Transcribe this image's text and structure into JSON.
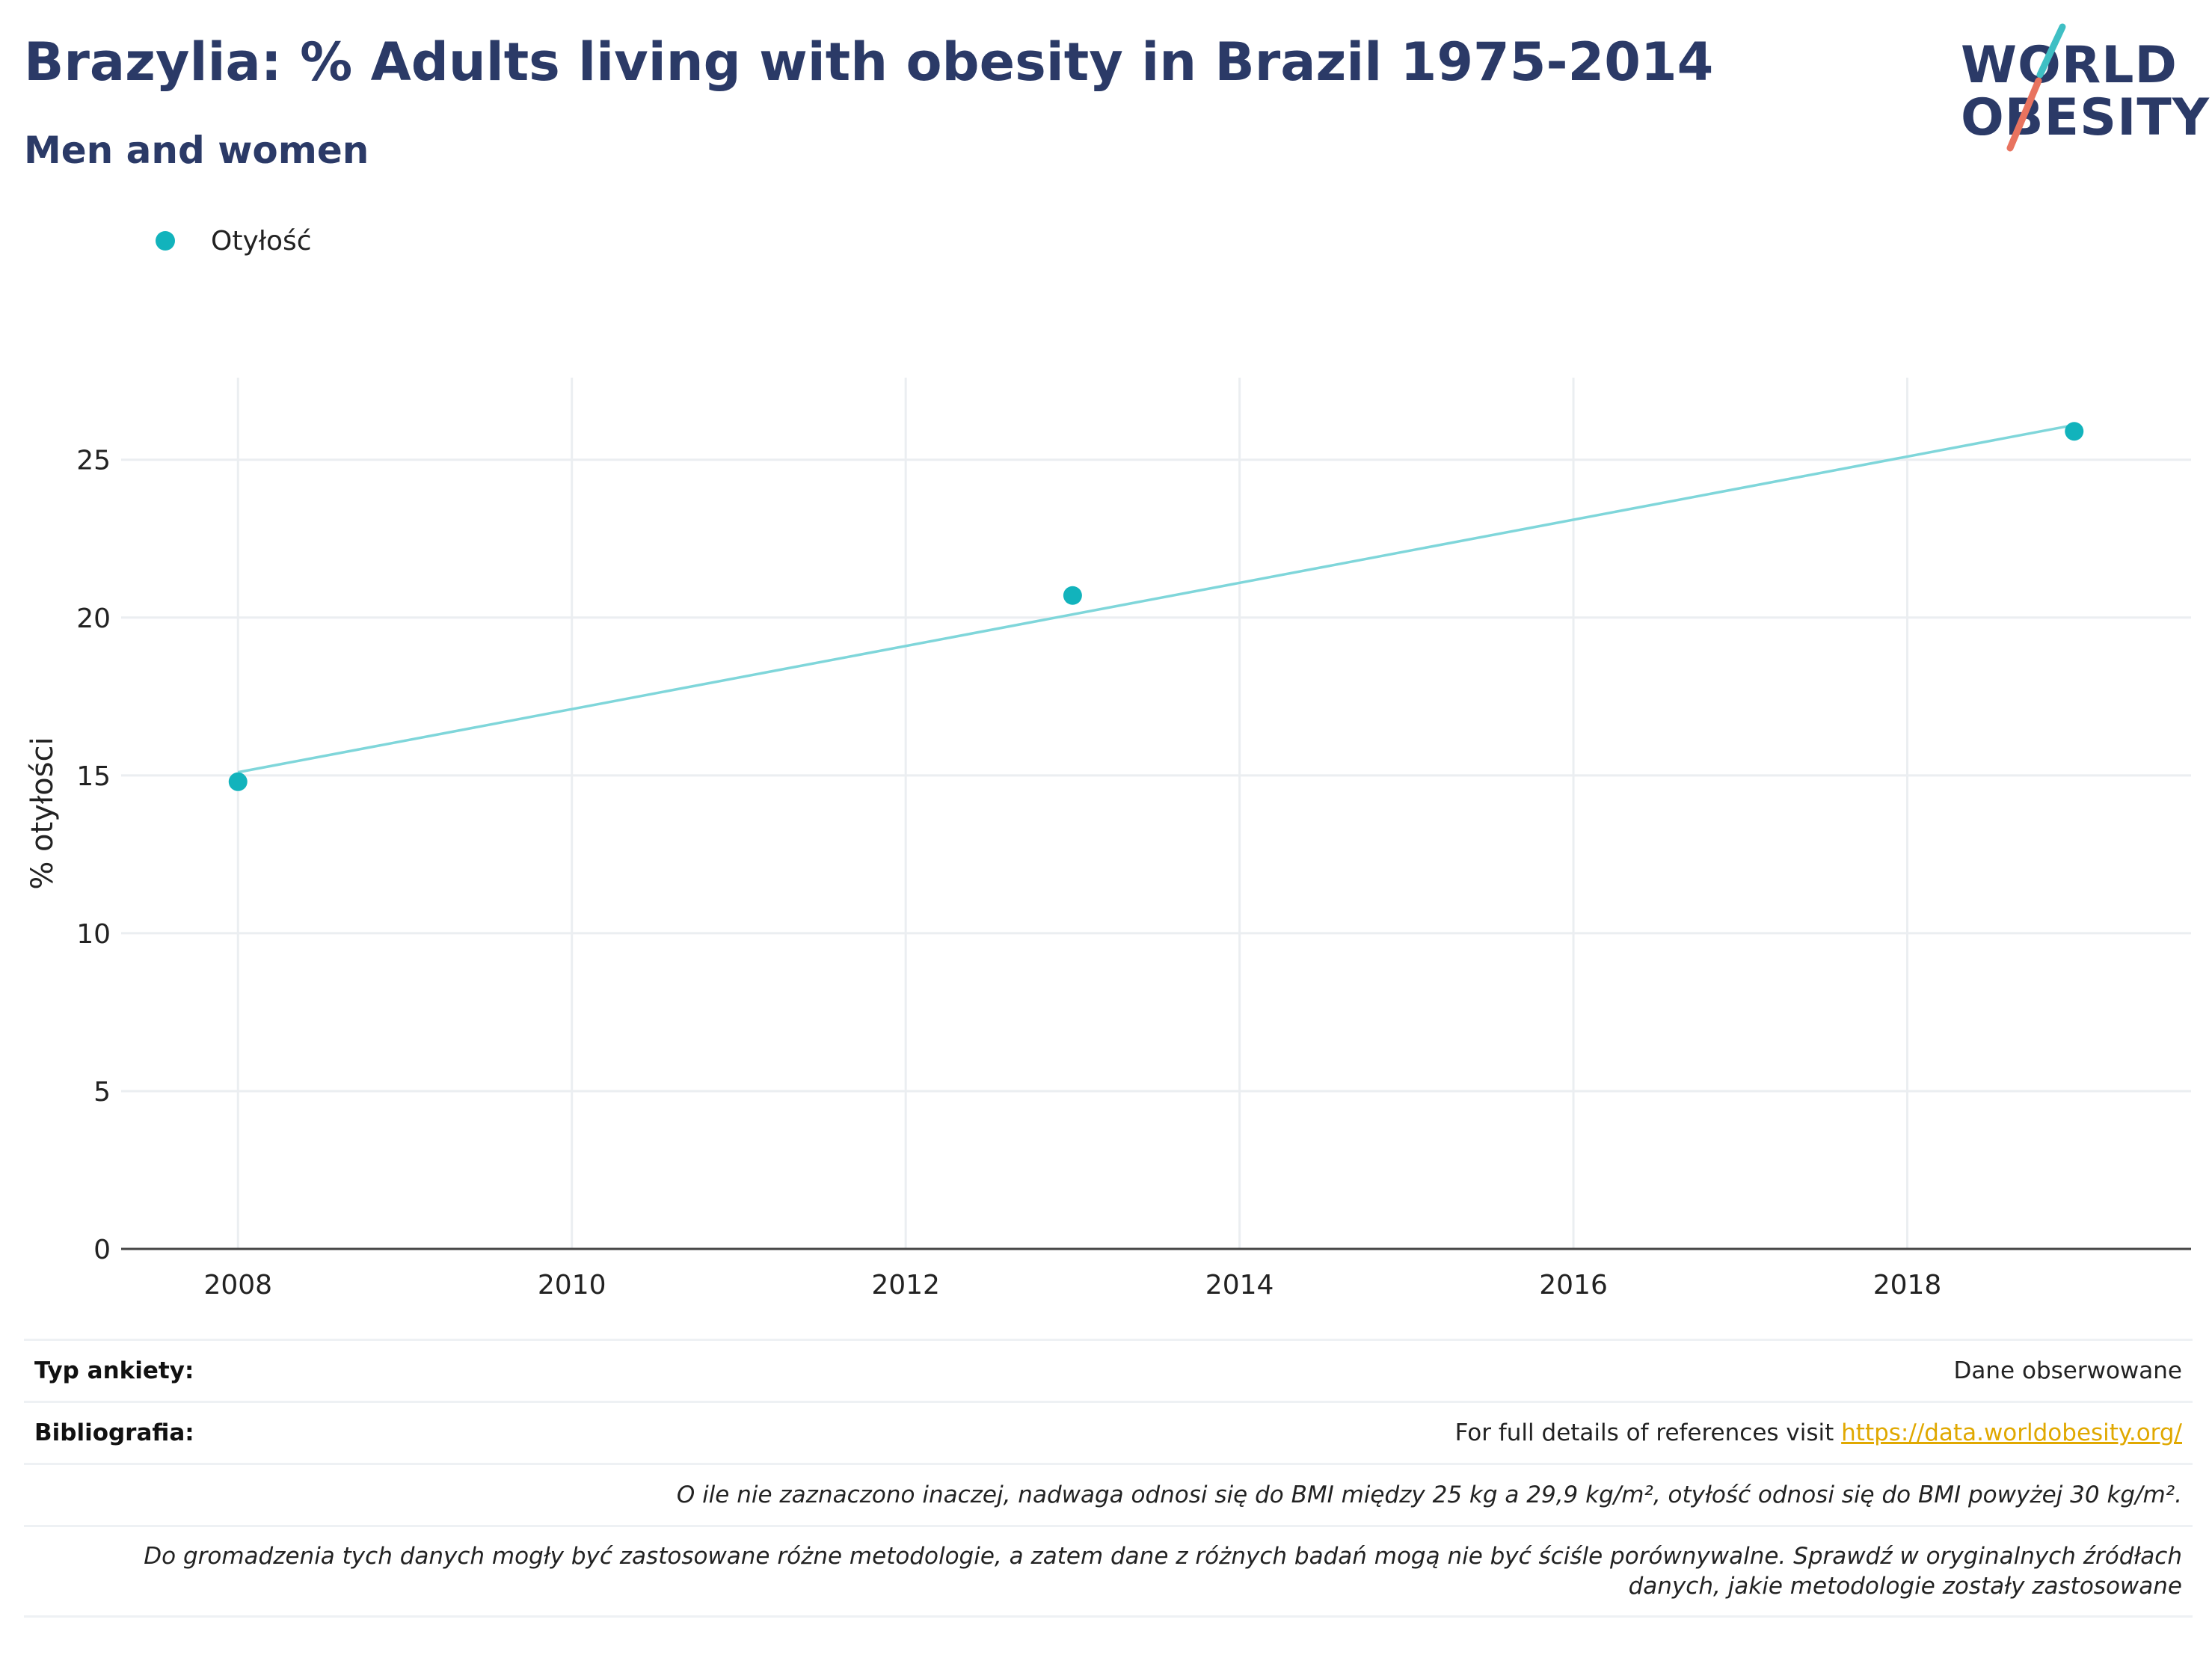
{
  "header": {
    "title": "Brazylia: % Adults living with obesity in Brazil 1975-2014",
    "subtitle": "Men and women"
  },
  "logo": {
    "line1": "WORLD",
    "line2": "OBESITY",
    "slash_teal": "#3fbfc4",
    "slash_coral": "#e8735f"
  },
  "legend": {
    "items": [
      {
        "label": "Otyłość",
        "color": "#12b3bc"
      }
    ]
  },
  "chart_data": {
    "type": "scatter",
    "ylabel": "% otyłości",
    "xlabel": "",
    "xlim": [
      2007.3,
      2019.7
    ],
    "ylim": [
      0,
      27.6
    ],
    "xticks": [
      2008,
      2010,
      2012,
      2014,
      2016,
      2018
    ],
    "yticks": [
      0,
      5,
      10,
      15,
      20,
      25
    ],
    "grid": true,
    "legend_position": "top-left",
    "series": [
      {
        "name": "Otyłość",
        "color": "#12b3bc",
        "x": [
          2008,
          2013,
          2019
        ],
        "y": [
          14.8,
          20.7,
          25.9
        ]
      }
    ],
    "trendline": {
      "color": "#7fd6da",
      "x": [
        2008,
        2019
      ],
      "y": [
        15.1,
        26.1
      ]
    }
  },
  "meta": {
    "survey_type_label": "Typ ankiety:",
    "survey_type_value": "Dane obserwowane",
    "bibliography_label": "Bibliografia:",
    "bibliography_text": "For full details of references visit ",
    "bibliography_link": "https://data.worldobesity.org/",
    "note_bmi": "O ile nie zaznaczono inaczej, nadwaga odnosi się do BMI między 25 kg a 29,9 kg/m², otyłość odnosi się do BMI powyżej 30 kg/m².",
    "note_methods_1": "Do gromadzenia tych danych mogły być zastosowane różne metodologie, a zatem dane z różnych badań mogą nie być ściśle porównywalne. Sprawdź w oryginalnych źródłach",
    "note_methods_2": "danych, jakie metodologie zostały zastosowane"
  }
}
